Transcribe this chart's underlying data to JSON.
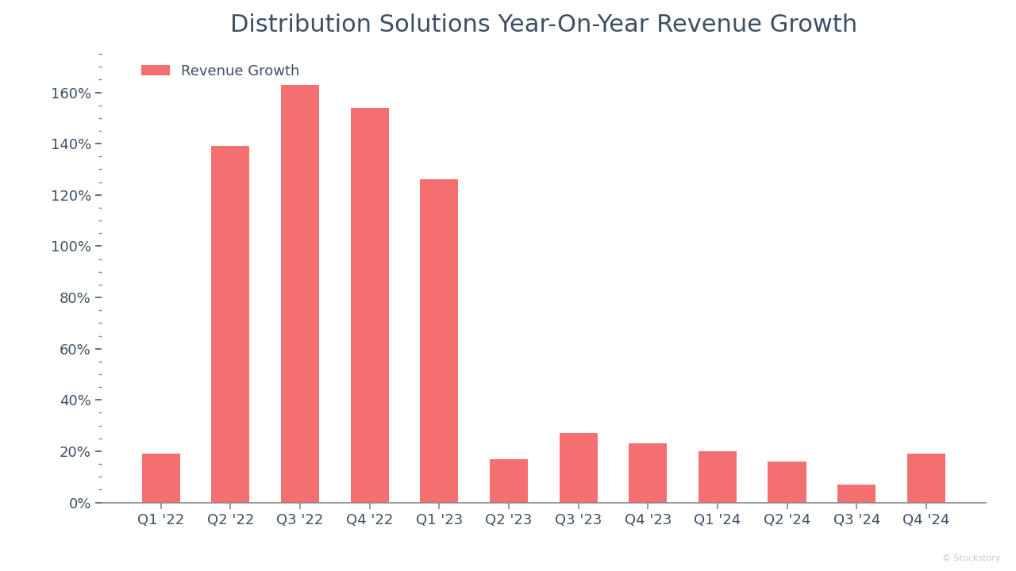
{
  "title": "Distribution Solutions Year-On-Year Revenue Growth",
  "legend_label": "Revenue Growth",
  "categories": [
    "Q1 '22",
    "Q2 '22",
    "Q3 '22",
    "Q4 '22",
    "Q1 '23",
    "Q2 '23",
    "Q3 '23",
    "Q4 '23",
    "Q1 '24",
    "Q2 '24",
    "Q3 '24",
    "Q4 '24"
  ],
  "values": [
    19,
    139,
    163,
    154,
    126,
    17,
    27,
    23,
    20,
    16,
    7,
    19
  ],
  "bar_color": "#F47070",
  "background_color": "#FFFFFF",
  "title_color": "#3d4f63",
  "tick_color": "#3d4f63",
  "label_color": "#3d4f63",
  "yticks_major": [
    0,
    20,
    40,
    60,
    80,
    100,
    120,
    140,
    160
  ],
  "ylim": [
    0,
    176
  ],
  "title_fontsize": 22,
  "legend_fontsize": 13,
  "tick_fontsize": 13,
  "watermark": "© Stockstory"
}
